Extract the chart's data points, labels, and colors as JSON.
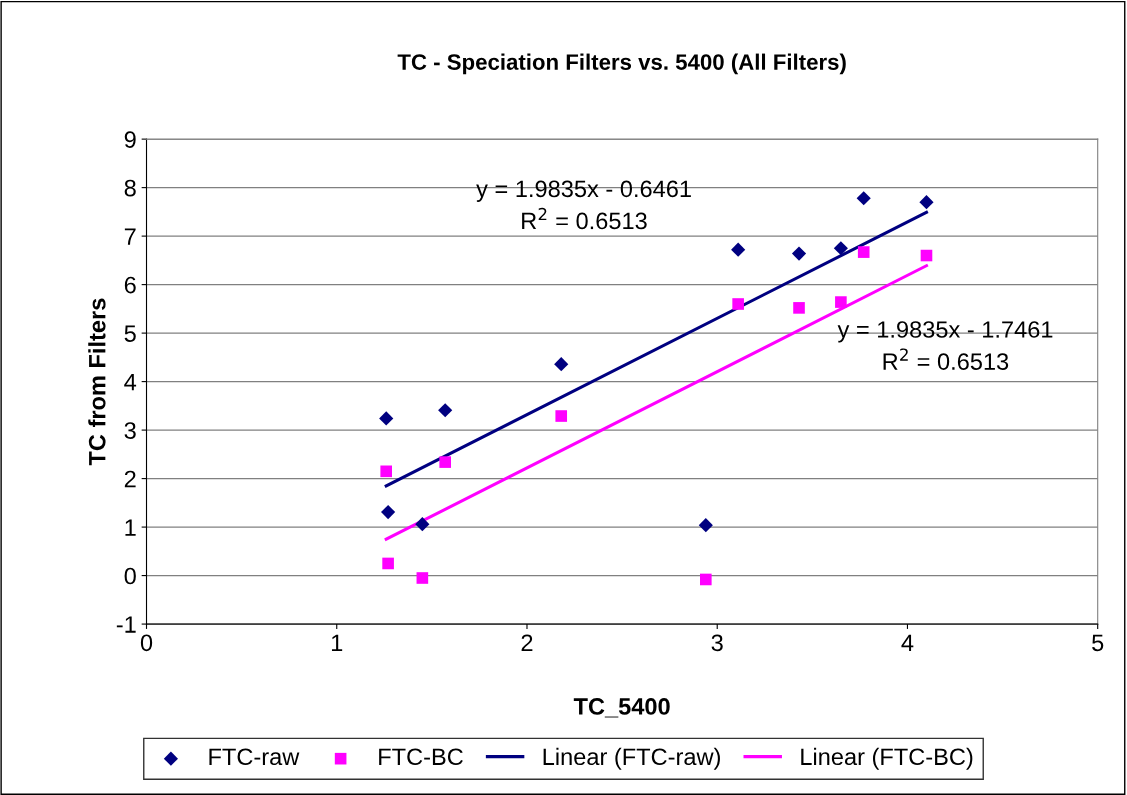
{
  "chart_data": {
    "type": "scatter",
    "title": "TC - Speciation Filters vs. 5400 (All Filters)",
    "xlabel": "TC_5400",
    "ylabel": "TC from Filters",
    "xlim": [
      0,
      5
    ],
    "xticks": [
      0,
      1,
      2,
      3,
      4,
      5
    ],
    "ylim": [
      -1,
      9
    ],
    "yticks": [
      -1,
      0,
      1,
      2,
      3,
      4,
      5,
      6,
      7,
      8,
      9
    ],
    "grid": "y",
    "legend": "bottom",
    "series": [
      {
        "name": "FTC-raw",
        "marker": "diamond",
        "color": "#000080",
        "x": [
          1.26,
          1.27,
          1.45,
          1.57,
          2.18,
          2.94,
          3.11,
          3.43,
          3.65,
          3.77,
          4.1
        ],
        "values": [
          3.24,
          1.31,
          1.06,
          3.41,
          4.36,
          1.04,
          6.72,
          6.64,
          6.75,
          7.78,
          7.7
        ]
      },
      {
        "name": "FTC-BC",
        "marker": "square",
        "color": "#ff00ff",
        "x": [
          1.26,
          1.27,
          1.45,
          1.57,
          2.18,
          2.94,
          3.11,
          3.43,
          3.65,
          3.77,
          4.1
        ],
        "values": [
          2.15,
          0.25,
          -0.05,
          2.34,
          3.29,
          -0.08,
          5.6,
          5.52,
          5.64,
          6.67,
          6.6
        ]
      },
      {
        "name": "Linear (FTC-raw)",
        "type": "line",
        "color": "#000080",
        "x": [
          1.26,
          4.1
        ],
        "values": [
          1.85,
          7.49
        ]
      },
      {
        "name": "Linear (FTC-BC)",
        "type": "line",
        "color": "#ff00ff",
        "x": [
          1.26,
          4.1
        ],
        "values": [
          0.75,
          6.39
        ]
      }
    ],
    "annotations": [
      "y = 1.9835x - 0.6461\nR$^{2}$ = 0.6513",
      "y = 1.9835x - 1.7461\nR$^{2}$ = 0.6513"
    ]
  }
}
